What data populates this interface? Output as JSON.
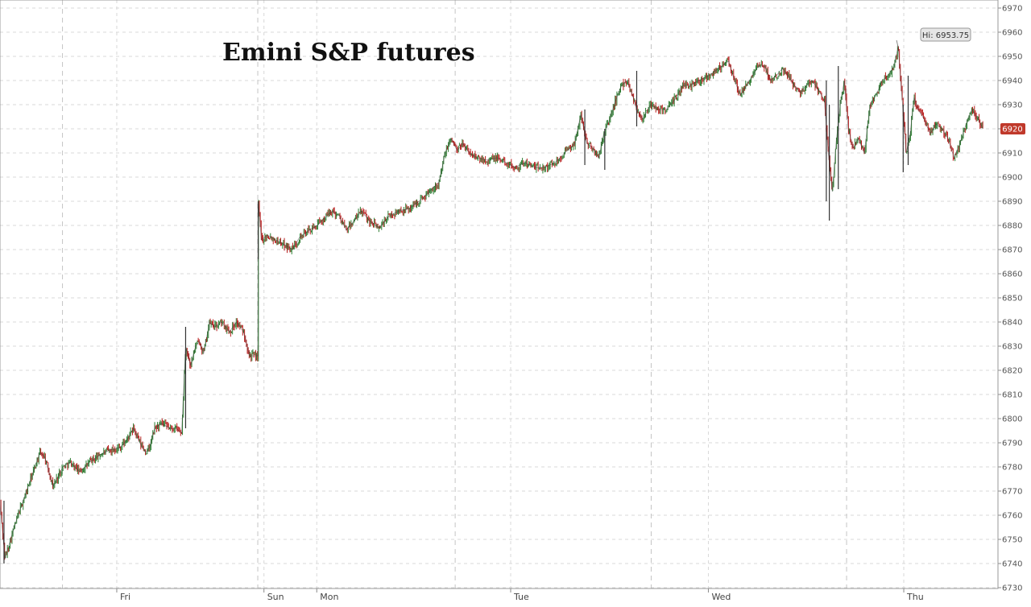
{
  "chart_data": {
    "type": "candlestick",
    "title": "Emini S&P futures",
    "ylim": [
      6730,
      6970
    ],
    "y_ticks": [
      6730,
      6740,
      6750,
      6760,
      6770,
      6780,
      6790,
      6800,
      6810,
      6820,
      6830,
      6840,
      6850,
      6860,
      6870,
      6880,
      6890,
      6900,
      6910,
      6920,
      6930,
      6940,
      6950,
      6960,
      6970
    ],
    "x_ticks": [
      {
        "label": "Fri",
        "t": 0.117
      },
      {
        "label": "Sun",
        "t": 0.2645
      },
      {
        "label": "Mon",
        "t": 0.3174
      },
      {
        "label": "Tue",
        "t": 0.5117
      },
      {
        "label": "Wed",
        "t": 0.7098
      },
      {
        "label": "Thu",
        "t": 0.9056
      }
    ],
    "session_dividers": [
      0.0626,
      0.2583,
      0.4561,
      0.6525,
      0.8483
    ],
    "grid": true,
    "up_color": "#2e7d32",
    "down_color": "#b71c1c",
    "line_color": "#3a3a3a",
    "price_path": [
      [
        0.0,
        6765
      ],
      [
        0.005,
        6742
      ],
      [
        0.012,
        6752
      ],
      [
        0.018,
        6760
      ],
      [
        0.025,
        6768
      ],
      [
        0.03,
        6774
      ],
      [
        0.035,
        6780
      ],
      [
        0.04,
        6786
      ],
      [
        0.045,
        6784
      ],
      [
        0.049,
        6778
      ],
      [
        0.053,
        6772
      ],
      [
        0.058,
        6776
      ],
      [
        0.063,
        6780
      ],
      [
        0.07,
        6782
      ],
      [
        0.08,
        6778
      ],
      [
        0.09,
        6782
      ],
      [
        0.1,
        6785
      ],
      [
        0.11,
        6787
      ],
      [
        0.12,
        6788
      ],
      [
        0.127,
        6791
      ],
      [
        0.134,
        6796
      ],
      [
        0.14,
        6790
      ],
      [
        0.146,
        6786
      ],
      [
        0.15,
        6788
      ],
      [
        0.155,
        6796
      ],
      [
        0.162,
        6798
      ],
      [
        0.17,
        6796
      ],
      [
        0.176,
        6796
      ],
      [
        0.182,
        6794
      ],
      [
        0.186,
        6830
      ],
      [
        0.191,
        6822
      ],
      [
        0.196,
        6830
      ],
      [
        0.2,
        6832
      ],
      [
        0.204,
        6827
      ],
      [
        0.21,
        6840
      ],
      [
        0.215,
        6838
      ],
      [
        0.222,
        6840
      ],
      [
        0.23,
        6836
      ],
      [
        0.237,
        6840
      ],
      [
        0.244,
        6836
      ],
      [
        0.25,
        6826
      ],
      [
        0.2583,
        6826
      ],
      [
        0.2588,
        6889
      ],
      [
        0.262,
        6874
      ],
      [
        0.268,
        6876
      ],
      [
        0.276,
        6874
      ],
      [
        0.285,
        6872
      ],
      [
        0.293,
        6870
      ],
      [
        0.3,
        6875
      ],
      [
        0.31,
        6878
      ],
      [
        0.318,
        6880
      ],
      [
        0.325,
        6883
      ],
      [
        0.333,
        6886
      ],
      [
        0.34,
        6884
      ],
      [
        0.347,
        6878
      ],
      [
        0.355,
        6882
      ],
      [
        0.362,
        6886
      ],
      [
        0.37,
        6882
      ],
      [
        0.38,
        6879
      ],
      [
        0.39,
        6884
      ],
      [
        0.4,
        6886
      ],
      [
        0.41,
        6887
      ],
      [
        0.42,
        6890
      ],
      [
        0.43,
        6894
      ],
      [
        0.44,
        6898
      ],
      [
        0.446,
        6910
      ],
      [
        0.452,
        6916
      ],
      [
        0.458,
        6911
      ],
      [
        0.464,
        6914
      ],
      [
        0.47,
        6910
      ],
      [
        0.478,
        6908
      ],
      [
        0.488,
        6907
      ],
      [
        0.498,
        6908
      ],
      [
        0.507,
        6906
      ],
      [
        0.516,
        6904
      ],
      [
        0.526,
        6906
      ],
      [
        0.536,
        6904
      ],
      [
        0.546,
        6904
      ],
      [
        0.556,
        6906
      ],
      [
        0.566,
        6910
      ],
      [
        0.576,
        6914
      ],
      [
        0.582,
        6926
      ],
      [
        0.588,
        6914
      ],
      [
        0.594,
        6912
      ],
      [
        0.6,
        6908
      ],
      [
        0.605,
        6918
      ],
      [
        0.611,
        6924
      ],
      [
        0.617,
        6932
      ],
      [
        0.623,
        6938
      ],
      [
        0.628,
        6940
      ],
      [
        0.633,
        6935
      ],
      [
        0.638,
        6928
      ],
      [
        0.644,
        6924
      ],
      [
        0.652,
        6930
      ],
      [
        0.66,
        6928
      ],
      [
        0.668,
        6928
      ],
      [
        0.676,
        6932
      ],
      [
        0.684,
        6938
      ],
      [
        0.692,
        6938
      ],
      [
        0.7,
        6940
      ],
      [
        0.71,
        6942
      ],
      [
        0.72,
        6945
      ],
      [
        0.73,
        6948
      ],
      [
        0.736,
        6940
      ],
      [
        0.742,
        6934
      ],
      [
        0.748,
        6938
      ],
      [
        0.754,
        6942
      ],
      [
        0.76,
        6946
      ],
      [
        0.766,
        6946
      ],
      [
        0.772,
        6940
      ],
      [
        0.778,
        6942
      ],
      [
        0.784,
        6945
      ],
      [
        0.79,
        6942
      ],
      [
        0.796,
        6938
      ],
      [
        0.802,
        6935
      ],
      [
        0.808,
        6938
      ],
      [
        0.814,
        6940
      ],
      [
        0.82,
        6936
      ],
      [
        0.826,
        6932
      ],
      [
        0.83,
        6910
      ],
      [
        0.834,
        6894
      ],
      [
        0.838,
        6915
      ],
      [
        0.842,
        6930
      ],
      [
        0.846,
        6940
      ],
      [
        0.85,
        6920
      ],
      [
        0.855,
        6912
      ],
      [
        0.86,
        6916
      ],
      [
        0.866,
        6910
      ],
      [
        0.872,
        6930
      ],
      [
        0.878,
        6934
      ],
      [
        0.884,
        6940
      ],
      [
        0.89,
        6942
      ],
      [
        0.896,
        6946
      ],
      [
        0.9,
        6954
      ],
      [
        0.904,
        6932
      ],
      [
        0.908,
        6910
      ],
      [
        0.912,
        6918
      ],
      [
        0.916,
        6933
      ],
      [
        0.92,
        6928
      ],
      [
        0.926,
        6924
      ],
      [
        0.932,
        6918
      ],
      [
        0.938,
        6922
      ],
      [
        0.944,
        6920
      ],
      [
        0.95,
        6916
      ],
      [
        0.956,
        6908
      ],
      [
        0.962,
        6914
      ],
      [
        0.968,
        6922
      ],
      [
        0.974,
        6928
      ],
      [
        0.98,
        6924
      ],
      [
        0.985,
        6920
      ]
    ],
    "spikes": [
      {
        "t": 0.004,
        "low": 6740,
        "high": 6766
      },
      {
        "t": 0.186,
        "low": 6796,
        "high": 6838
      },
      {
        "t": 0.2587,
        "low": 6866,
        "high": 6890
      },
      {
        "t": 0.586,
        "low": 6905,
        "high": 6928
      },
      {
        "t": 0.606,
        "low": 6903,
        "high": 6920
      },
      {
        "t": 0.638,
        "low": 6921,
        "high": 6944
      },
      {
        "t": 0.828,
        "low": 6890,
        "high": 6940
      },
      {
        "t": 0.831,
        "low": 6882,
        "high": 6930
      },
      {
        "t": 0.84,
        "low": 6895,
        "high": 6946
      },
      {
        "t": 0.905,
        "low": 6902,
        "high": 6930
      },
      {
        "t": 0.91,
        "low": 6905,
        "high": 6942
      }
    ],
    "annotations": [
      {
        "text": "Hi: 6953.75",
        "t": 0.9,
        "y": 6953.75
      },
      {
        "text": "6920",
        "t": 0.985,
        "y": 6920
      }
    ]
  }
}
